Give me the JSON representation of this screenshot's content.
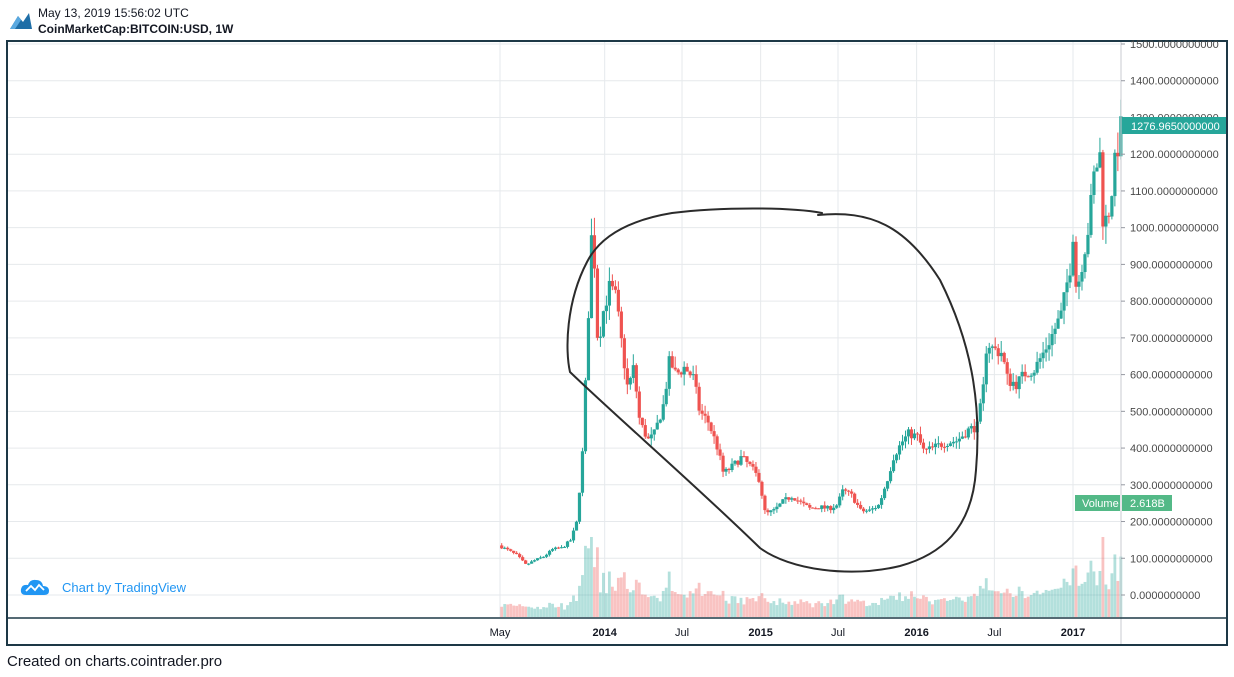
{
  "header": {
    "timestamp": "May 13, 2019 15:56:02 UTC",
    "symbol": "CoinMarketCap:BITCOIN:USD, 1W"
  },
  "branding": {
    "badge_text": "Chart by TradingView",
    "footer_text": "Created on charts.cointrader.pro"
  },
  "colors": {
    "up": "#26a69a",
    "down": "#ef5350",
    "price_label_bg": "#26a69a",
    "volume_label_bg": "#53b987",
    "grid": "#e6e9ec",
    "annotation": "#2b2b2b"
  },
  "chart_data": {
    "type": "candlestick",
    "interval": "1W",
    "x_axis_labels": [
      {
        "label": "May",
        "date": "2013-05-01",
        "bold": false
      },
      {
        "label": "2014",
        "date": "2014-01-01",
        "bold": true
      },
      {
        "label": "Jul",
        "date": "2014-07-01",
        "bold": false
      },
      {
        "label": "2015",
        "date": "2015-01-01",
        "bold": true
      },
      {
        "label": "Jul",
        "date": "2015-07-01",
        "bold": false
      },
      {
        "label": "2016",
        "date": "2016-01-01",
        "bold": true
      },
      {
        "label": "Jul",
        "date": "2016-07-01",
        "bold": false
      },
      {
        "label": "2017",
        "date": "2017-01-01",
        "bold": true
      }
    ],
    "y_axis_ticks": [
      "0.0000000000",
      "100.0000000000",
      "200.0000000000",
      "300.0000000000",
      "400.0000000000",
      "500.0000000000",
      "600.0000000000",
      "700.0000000000",
      "800.0000000000",
      "900.0000000000",
      "1000.0000000000",
      "1100.0000000000",
      "1200.0000000000",
      "1300.0000000000",
      "1400.0000000000",
      "1500.0000000000"
    ],
    "y_range": [
      -60,
      1500
    ],
    "last_price": "1276.9650000000",
    "last_price_value": 1276.965,
    "volume_label": "Volume",
    "volume_value": "2.618B",
    "price_points": [
      [
        "2013-04-28",
        135
      ],
      [
        "2013-05-20",
        122
      ],
      [
        "2013-06-10",
        108
      ],
      [
        "2013-07-01",
        82
      ],
      [
        "2013-07-22",
        95
      ],
      [
        "2013-08-12",
        105
      ],
      [
        "2013-09-02",
        125
      ],
      [
        "2013-09-23",
        128
      ],
      [
        "2013-10-14",
        150
      ],
      [
        "2013-10-28",
        200
      ],
      [
        "2013-11-11",
        400
      ],
      [
        "2013-11-25",
        800
      ],
      [
        "2013-12-02",
        1000
      ],
      [
        "2013-12-09",
        890
      ],
      [
        "2013-12-16",
        680
      ],
      [
        "2013-12-30",
        780
      ],
      [
        "2014-01-13",
        840
      ],
      [
        "2014-01-27",
        810
      ],
      [
        "2014-02-10",
        680
      ],
      [
        "2014-02-24",
        560
      ],
      [
        "2014-03-10",
        620
      ],
      [
        "2014-03-24",
        470
      ],
      [
        "2014-04-14",
        420
      ],
      [
        "2014-04-28",
        440
      ],
      [
        "2014-05-19",
        520
      ],
      [
        "2014-06-02",
        640
      ],
      [
        "2014-06-16",
        600
      ],
      [
        "2014-07-07",
        620
      ],
      [
        "2014-07-28",
        590
      ],
      [
        "2014-08-11",
        500
      ],
      [
        "2014-09-01",
        470
      ],
      [
        "2014-09-22",
        400
      ],
      [
        "2014-10-06",
        330
      ],
      [
        "2014-10-27",
        350
      ],
      [
        "2014-11-17",
        375
      ],
      [
        "2014-12-08",
        350
      ],
      [
        "2014-12-29",
        315
      ],
      [
        "2015-01-12",
        220
      ],
      [
        "2015-02-02",
        230
      ],
      [
        "2015-02-23",
        255
      ],
      [
        "2015-03-16",
        270
      ],
      [
        "2015-04-06",
        250
      ],
      [
        "2015-04-27",
        235
      ],
      [
        "2015-05-18",
        240
      ],
      [
        "2015-06-08",
        235
      ],
      [
        "2015-06-29",
        245
      ],
      [
        "2015-07-13",
        285
      ],
      [
        "2015-08-03",
        270
      ],
      [
        "2015-08-24",
        228
      ],
      [
        "2015-09-14",
        230
      ],
      [
        "2015-10-05",
        245
      ],
      [
        "2015-10-26",
        320
      ],
      [
        "2015-11-09",
        380
      ],
      [
        "2015-11-30",
        420
      ],
      [
        "2015-12-14",
        440
      ],
      [
        "2016-01-04",
        430
      ],
      [
        "2016-01-18",
        390
      ],
      [
        "2016-02-08",
        400
      ],
      [
        "2016-03-07",
        415
      ],
      [
        "2016-04-04",
        420
      ],
      [
        "2016-05-02",
        450
      ],
      [
        "2016-05-23",
        460
      ],
      [
        "2016-06-06",
        570
      ],
      [
        "2016-06-13",
        690
      ],
      [
        "2016-06-27",
        670
      ],
      [
        "2016-07-18",
        660
      ],
      [
        "2016-08-01",
        585
      ],
      [
        "2016-08-22",
        575
      ],
      [
        "2016-09-12",
        605
      ],
      [
        "2016-10-03",
        615
      ],
      [
        "2016-10-24",
        660
      ],
      [
        "2016-11-14",
        710
      ],
      [
        "2016-12-05",
        765
      ],
      [
        "2016-12-26",
        900
      ],
      [
        "2017-01-02",
        1000
      ],
      [
        "2017-01-09",
        820
      ],
      [
        "2017-01-23",
        910
      ],
      [
        "2017-02-06",
        1000
      ],
      [
        "2017-02-20",
        1150
      ],
      [
        "2017-03-06",
        1200
      ],
      [
        "2017-03-13",
        1000
      ],
      [
        "2017-03-27",
        1050
      ],
      [
        "2017-04-10",
        1180
      ],
      [
        "2017-04-24",
        1276.965
      ]
    ]
  }
}
